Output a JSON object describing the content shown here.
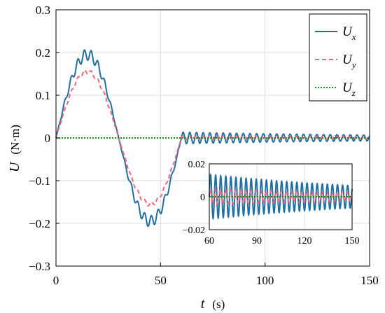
{
  "chart_data": {
    "type": "line",
    "ylabel": "U",
    "ylabel_unit": "(N·m)",
    "xlabel": "t",
    "xlabel_unit": "(s)",
    "xlim": [
      0,
      150
    ],
    "ylim": [
      -0.3,
      0.3
    ],
    "x_ticks": [
      0,
      50,
      100,
      150
    ],
    "y_ticks": [
      -0.3,
      -0.2,
      -0.1,
      0,
      0.1,
      0.2,
      0.3
    ],
    "x_tick_labels": [
      "0",
      "50",
      "100",
      "150"
    ],
    "y_tick_labels": [
      "−0.3",
      "−0.2",
      "−0.1",
      "0",
      "0.1",
      "0.2",
      "0.3"
    ],
    "grid": true,
    "legend_position": "top-right",
    "series": [
      {
        "name": "U",
        "subscript": "x",
        "color": "#1f6fa3",
        "style": "solid",
        "description_points": {
          "peak_positive": [
            12,
            0.225
          ],
          "zero_cross": [
            30,
            0.0
          ],
          "peak_negative": [
            48,
            -0.22
          ],
          "settle": [
            60,
            0.0
          ]
        },
        "envelope_amplitude": 0.22,
        "ripple_amplitude": 0.012,
        "residual_amplitude_start": 0.012,
        "residual_amplitude_end": 0.005
      },
      {
        "name": "U",
        "subscript": "y",
        "color": "#f0657a",
        "style": "dashed",
        "envelope_amplitude": 0.16,
        "ripple_amplitude": 0.006,
        "residual_amplitude_start": 0.004,
        "residual_amplitude_end": 0.002
      },
      {
        "name": "U",
        "subscript": "z",
        "color": "#1f8a1f",
        "style": "dotted",
        "constant_value": 0
      }
    ],
    "inset": {
      "xlim": [
        60,
        150
      ],
      "ylim": [
        -0.02,
        0.02
      ],
      "x_ticks": [
        60,
        90,
        120,
        150
      ],
      "y_ticks": [
        -0.02,
        0,
        0.02
      ],
      "x_tick_labels": [
        "60",
        "90",
        "120",
        "150"
      ],
      "y_tick_labels": [
        "−0.02",
        "0",
        "0.02"
      ]
    }
  }
}
